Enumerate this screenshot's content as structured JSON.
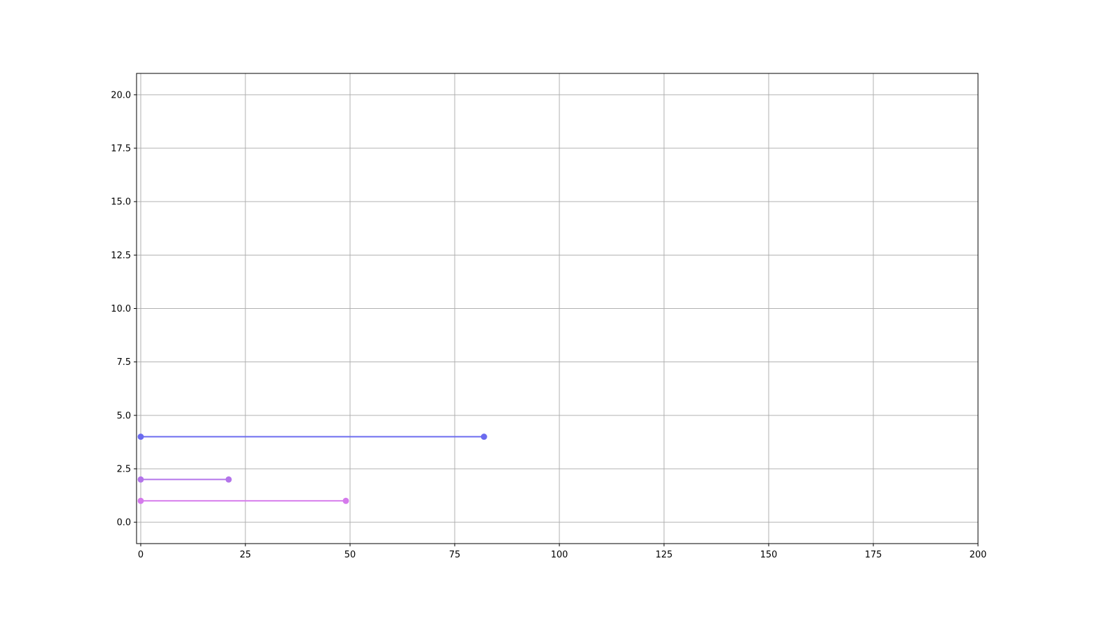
{
  "chart_data": {
    "type": "line",
    "title": "",
    "xlabel": "",
    "ylabel": "",
    "xlim": [
      -1,
      200
    ],
    "ylim": [
      -1,
      21
    ],
    "grid": true,
    "xticks": [
      0,
      25,
      50,
      75,
      100,
      125,
      150,
      175,
      200
    ],
    "xtick_labels": [
      "0",
      "25",
      "50",
      "75",
      "100",
      "125",
      "150",
      "175",
      "200"
    ],
    "yticks": [
      0,
      2.5,
      5,
      7.5,
      10,
      12.5,
      15,
      17.5,
      20
    ],
    "ytick_labels": [
      "0.0",
      "2.5",
      "5.0",
      "7.5",
      "10.0",
      "12.5",
      "15.0",
      "17.5",
      "20.0"
    ],
    "series": [
      {
        "x": [
          0,
          82
        ],
        "y": [
          4,
          4
        ],
        "color": "#6b6bef",
        "marker": "circle"
      },
      {
        "x": [
          0,
          21
        ],
        "y": [
          2,
          2
        ],
        "color": "#b374ea",
        "marker": "circle"
      },
      {
        "x": [
          0,
          49
        ],
        "y": [
          1,
          1
        ],
        "color": "#d57aec",
        "marker": "circle"
      }
    ]
  }
}
